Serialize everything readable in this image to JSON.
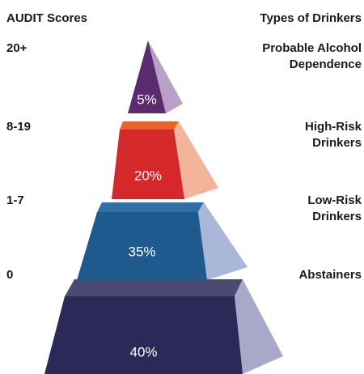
{
  "chart_data": {
    "type": "pyramid",
    "title_left": "AUDIT Scores",
    "title_right": "Types of Drinkers",
    "categories": [
      "20+",
      "8-19",
      "1-7",
      "0"
    ],
    "types": [
      [
        "Probable Alcohol",
        "Dependence"
      ],
      [
        "High-Risk",
        "Drinkers"
      ],
      [
        "Low-Risk",
        "Drinkers"
      ],
      [
        "Abstainers"
      ]
    ],
    "values": [
      5,
      20,
      35,
      40
    ],
    "value_labels": [
      "5%",
      "20%",
      "35%",
      "40%"
    ],
    "colors": [
      "#5b2a6f",
      "#d4282a",
      "#1f5a8e",
      "#2a2958"
    ]
  }
}
